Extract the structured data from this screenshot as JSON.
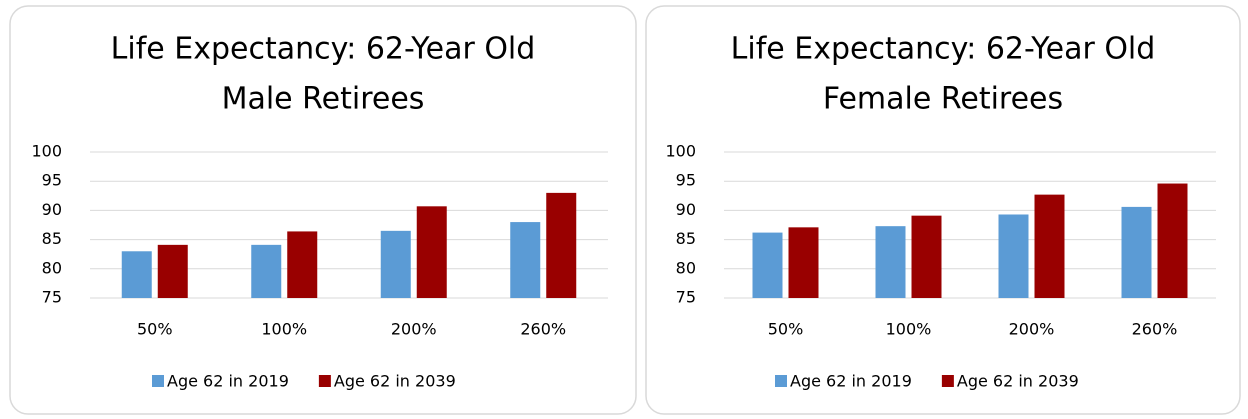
{
  "chart_data": [
    {
      "type": "bar",
      "title": [
        "Life Expectancy: 62-Year Old",
        "Male Retirees"
      ],
      "categories": [
        "50%",
        "100%",
        "200%",
        "260%"
      ],
      "series": [
        {
          "name": "Age 62 in 2019",
          "color": "#5b9bd5",
          "values": [
            83,
            84.1,
            86.5,
            88
          ]
        },
        {
          "name": "Age 62 in 2039",
          "color": "#990000",
          "values": [
            84.1,
            86.4,
            90.7,
            93
          ]
        }
      ],
      "ylim": [
        75,
        100
      ],
      "yticks": [
        75,
        80,
        85,
        90,
        95,
        100
      ],
      "grid": true,
      "legend": "bottom"
    },
    {
      "type": "bar",
      "title": [
        "Life Expectancy:  62-Year Old",
        "Female Retirees"
      ],
      "categories": [
        "50%",
        "100%",
        "200%",
        "260%"
      ],
      "series": [
        {
          "name": "Age 62 in 2019",
          "color": "#5b9bd5",
          "values": [
            86.2,
            87.3,
            89.3,
            90.6
          ]
        },
        {
          "name": "Age 62 in 2039",
          "color": "#990000",
          "values": [
            87.1,
            89.1,
            92.7,
            94.6
          ]
        }
      ],
      "ylim": [
        75,
        100
      ],
      "yticks": [
        75,
        80,
        85,
        90,
        95,
        100
      ],
      "grid": true,
      "legend": "bottom"
    }
  ]
}
